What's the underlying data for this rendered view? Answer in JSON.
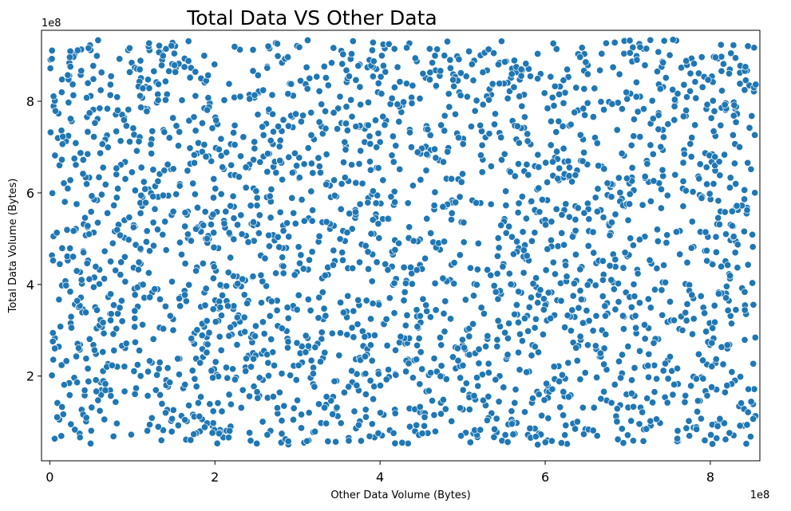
{
  "chart_data": {
    "type": "scatter",
    "title": "Total Data VS Other Data",
    "xlabel": "Other Data Volume (Bytes)",
    "ylabel": "Total Data Volume (Bytes)",
    "x_offset_label": "1e8",
    "y_offset_label": "1e8",
    "xlim": [
      -0.1,
      8.6
    ],
    "ylim": [
      0.15,
      9.55
    ],
    "x_ticks": [
      0,
      2,
      4,
      6,
      8
    ],
    "y_ticks": [
      2,
      4,
      6,
      8
    ],
    "x_tick_labels": [
      "0",
      "2",
      "4",
      "6",
      "8"
    ],
    "y_tick_labels": [
      "2",
      "4",
      "6",
      "8"
    ],
    "grid": false,
    "legend": "none",
    "marker_color": "#1f77b4",
    "series": [
      {
        "point_count": 2500,
        "x_range": [
          0.0,
          8.55
        ],
        "y_range": [
          0.5,
          9.35
        ],
        "distribution": "uniform",
        "note": "values in units of 1e8 bytes"
      }
    ]
  }
}
